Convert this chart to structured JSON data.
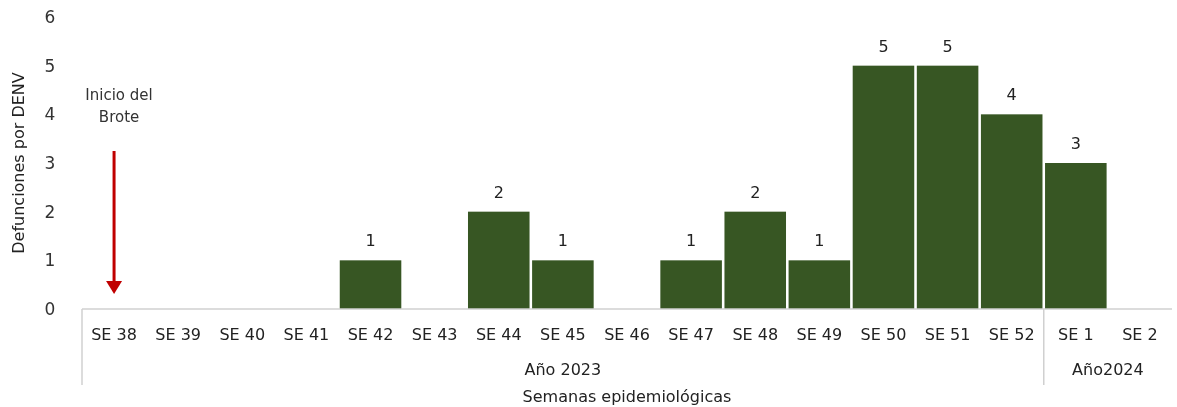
{
  "chart_data": {
    "type": "bar",
    "xlabel": "Semanas epidemiológicas",
    "ylabel": "Defunciones por DENV",
    "categories": [
      "SE 38",
      "SE 39",
      "SE 40",
      "SE 41",
      "SE 42",
      "SE 43",
      "SE 44",
      "SE 45",
      "SE 46",
      "SE 47",
      "SE 48",
      "SE 49",
      "SE 50",
      "SE 51",
      "SE 52",
      "SE 1",
      "SE 2"
    ],
    "values": [
      0,
      0,
      0,
      0,
      1,
      0,
      2,
      1,
      0,
      1,
      2,
      1,
      5,
      5,
      4,
      3,
      0
    ],
    "value_labels": [
      null,
      null,
      null,
      null,
      "1",
      null,
      "2",
      "1",
      null,
      "1",
      "2",
      "1",
      "5",
      "5",
      "4",
      "3",
      null
    ],
    "color": "#375623",
    "ylim": [
      0,
      6
    ],
    "yticks": [
      0,
      1,
      2,
      3,
      4,
      5,
      6
    ],
    "grid": false,
    "annotations": [
      "Año 2023",
      "Año2024",
      "Inicio del Brote"
    ]
  }
}
